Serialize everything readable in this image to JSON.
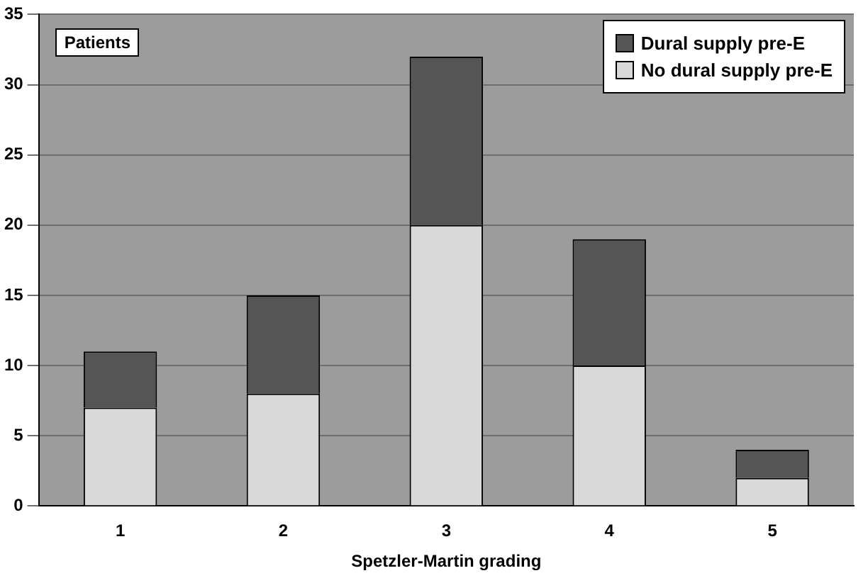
{
  "chart_data": {
    "type": "bar",
    "stacked": true,
    "ylabel": "Patients",
    "xlabel": "Spetzler-Martin grading",
    "categories": [
      "1",
      "2",
      "3",
      "4",
      "5"
    ],
    "series": [
      {
        "name": "No dural supply pre-E",
        "color": "#d9d9d9",
        "values": [
          7,
          8,
          20,
          10,
          2
        ]
      },
      {
        "name": "Dural supply pre-E",
        "color": "#555555",
        "values": [
          4,
          7,
          12,
          9,
          2
        ]
      }
    ],
    "ylim": [
      0,
      35
    ],
    "yticks": [
      0,
      5,
      10,
      15,
      20,
      25,
      30,
      35
    ],
    "grid": "y",
    "legend": "top right"
  }
}
